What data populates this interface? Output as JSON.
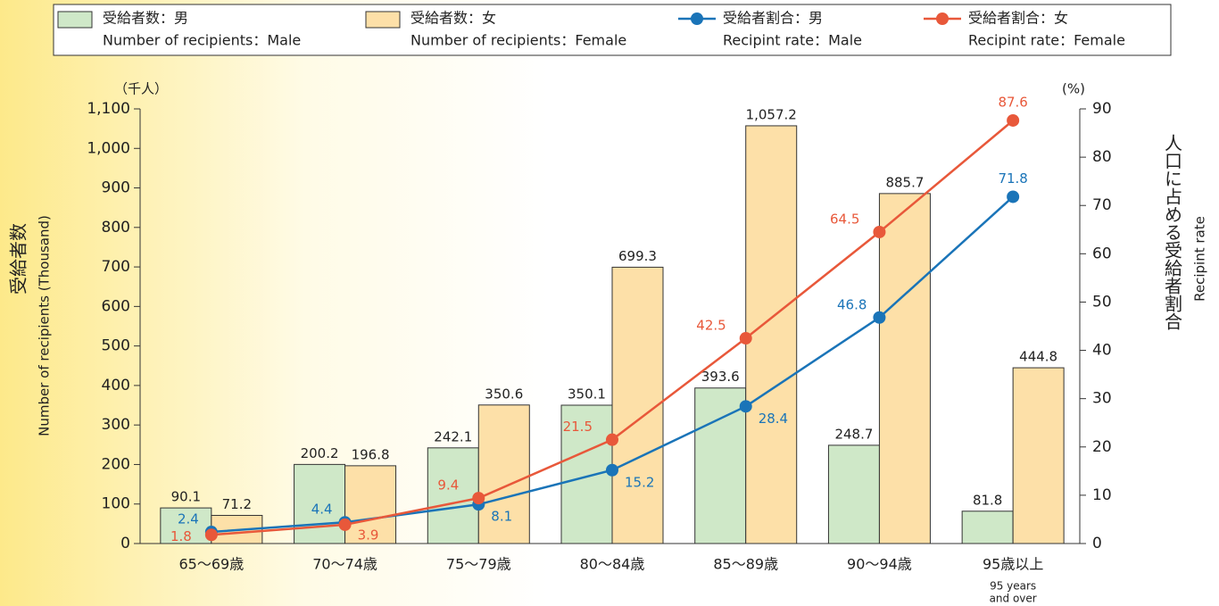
{
  "chart_data": {
    "type": "bar_line",
    "categories": [
      "65～69歳",
      "70～74歳",
      "75～79歳",
      "80～84歳",
      "85～89歳",
      "90～94歳",
      "95歳以上"
    ],
    "category_note": [
      "95 years",
      "and over"
    ],
    "y_unit": "（千人）",
    "y2_unit": "(%)",
    "ylabel": "受給者数",
    "ylabel_en": "Number of recipients (Thousand)",
    "y2label": "人口に占める受給者割合",
    "y2label_en": "Recipint rate",
    "ylim": [
      0,
      1100
    ],
    "yticks": [
      0,
      100,
      200,
      300,
      400,
      500,
      600,
      700,
      800,
      900,
      {
        "value": 1000,
        "label": "1,000"
      },
      {
        "value": 1100,
        "label": "1,100"
      }
    ],
    "y2lim": [
      0,
      90
    ],
    "y2ticks": [
      0,
      10,
      20,
      30,
      40,
      50,
      60,
      70,
      80,
      90
    ],
    "series": [
      {
        "name": "受給者数：男",
        "name_en": "Number of recipients：Male",
        "kind": "bar",
        "color": "#cfe8c8",
        "values": [
          90.1,
          200.2,
          242.1,
          350.1,
          393.6,
          248.7,
          81.8
        ]
      },
      {
        "name": "受給者数：女",
        "name_en": "Number of recipients：Female",
        "kind": "bar",
        "color": "#fde0a8",
        "values": [
          71.2,
          196.8,
          350.6,
          699.3,
          1057.2,
          885.7,
          444.8
        ],
        "value_labels": [
          "71.2",
          "196.8",
          "350.6",
          "699.3",
          "1,057.2",
          "885.7",
          "444.8"
        ]
      },
      {
        "name": "受給者割合：男",
        "name_en": "Recipint rate：Male",
        "kind": "line",
        "axis": "y2",
        "color": "#1a74b8",
        "values": [
          2.4,
          4.4,
          8.1,
          15.2,
          28.4,
          46.8,
          71.8
        ]
      },
      {
        "name": "受給者割合：女",
        "name_en": "Recipint rate：Female",
        "kind": "line",
        "axis": "y2",
        "color": "#e8583a",
        "values": [
          1.8,
          3.9,
          9.4,
          21.5,
          42.5,
          64.5,
          87.6
        ]
      }
    ]
  }
}
